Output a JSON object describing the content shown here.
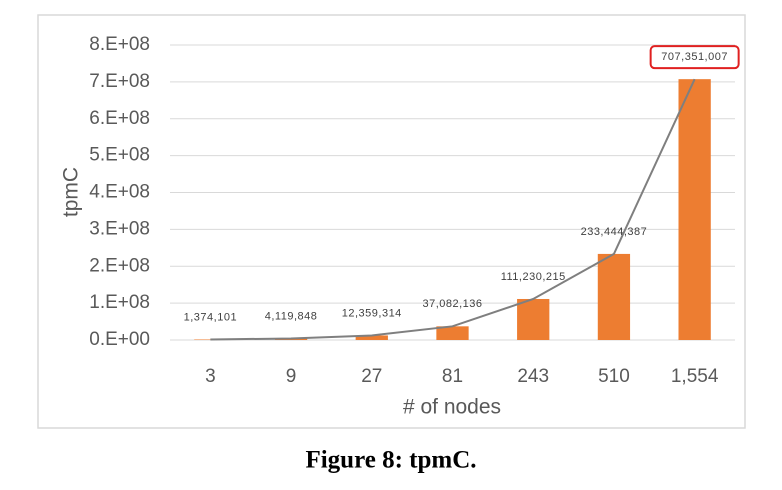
{
  "chart_data": {
    "type": "bar",
    "caption": "Figure 8: tpmC.",
    "x_label": "# of nodes",
    "y_label": "tpmC",
    "categories": [
      "3",
      "9",
      "27",
      "81",
      "243",
      "510",
      "1,554"
    ],
    "values": [
      1374101,
      4119848,
      12359314,
      37082136,
      111230215,
      233444387,
      707351007
    ],
    "value_labels": [
      "1,374,101",
      "4,119,848",
      "12,359,314",
      "37,082,136",
      "111,230,215",
      "233,444,387",
      "707,351,007"
    ],
    "color": "#ed7d31",
    "line_color": "#7f7f7f",
    "highlight_index": 6,
    "highlight_color": "#e02020",
    "ylim": [
      0,
      800000000
    ],
    "yticks": [
      {
        "value": 0,
        "label": "0.E+00"
      },
      {
        "value": 100000000,
        "label": "1.E+08"
      },
      {
        "value": 200000000,
        "label": "2.E+08"
      },
      {
        "value": 300000000,
        "label": "3.E+08"
      },
      {
        "value": 400000000,
        "label": "4.E+08"
      },
      {
        "value": 500000000,
        "label": "5.E+08"
      },
      {
        "value": 600000000,
        "label": "6.E+08"
      },
      {
        "value": 700000000,
        "label": "7.E+08"
      },
      {
        "value": 800000000,
        "label": "8.E+08"
      }
    ],
    "grid": true
  }
}
